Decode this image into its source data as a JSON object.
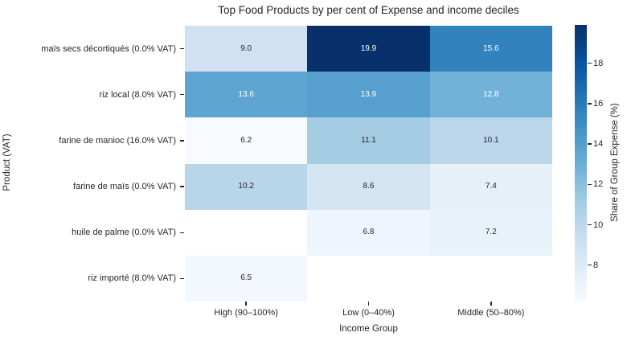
{
  "chart_data": {
    "type": "heatmap",
    "title": "Top Food Products by per cent of Expense and income deciles",
    "xlabel": "Income Group",
    "ylabel": "Product (VAT)",
    "categories_x": [
      "High (90–100%)",
      "Low (0–40%)",
      "Middle (50–80%)"
    ],
    "categories_y": [
      "maïs secs décortiqués (0.0% VAT)",
      "riz local (8.0% VAT)",
      "farine de manioc (16.0% VAT)",
      "farine de maïs (0.0% VAT)",
      "huile de palme (0.0% VAT)",
      "riz importé (8.0% VAT)"
    ],
    "values": [
      [
        9.0,
        19.9,
        15.6
      ],
      [
        13.6,
        13.9,
        12.8
      ],
      [
        6.2,
        11.1,
        10.1
      ],
      [
        10.2,
        8.6,
        7.4
      ],
      [
        null,
        6.8,
        7.2
      ],
      [
        6.5,
        null,
        null
      ]
    ],
    "colormap": "Blues",
    "missing_color": "#ffffff",
    "grid": false,
    "colorbar": {
      "label": "Share of Group Expense (%)",
      "ticks": [
        8,
        10,
        12,
        14,
        16,
        18
      ],
      "vmin": 6.2,
      "vmax": 19.9,
      "position": "right"
    },
    "colors": {
      "max_color": "#08306b",
      "min_color": "#f7fbff",
      "text": "#262626",
      "annotation_light": "#ffffff"
    }
  }
}
